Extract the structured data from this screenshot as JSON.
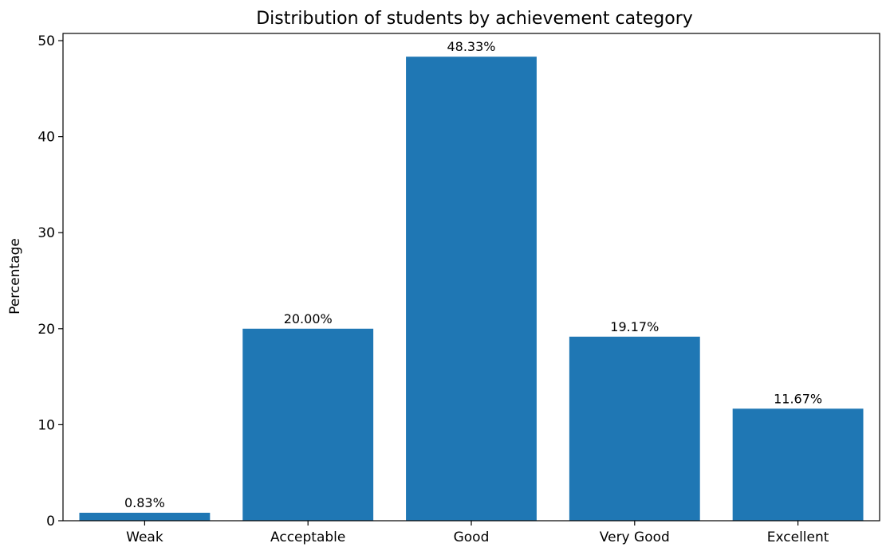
{
  "chart_data": {
    "type": "bar",
    "title": "Distribution of students by achievement category",
    "xlabel": "",
    "ylabel": "Percentage",
    "categories": [
      "Weak",
      "Acceptable",
      "Good",
      "Very Good",
      "Excellent"
    ],
    "values": [
      0.83,
      20.0,
      48.33,
      19.17,
      11.67
    ],
    "data_labels": [
      "0.83%",
      "20.00%",
      "48.33%",
      "19.17%",
      "11.67%"
    ],
    "yticks": [
      0,
      10,
      20,
      30,
      40,
      50
    ],
    "ylim": [
      0,
      50.75
    ],
    "grid": false,
    "legend": "none",
    "colors": {
      "bar": "#1f77b4",
      "axis": "#000000",
      "background": "#ffffff"
    }
  }
}
